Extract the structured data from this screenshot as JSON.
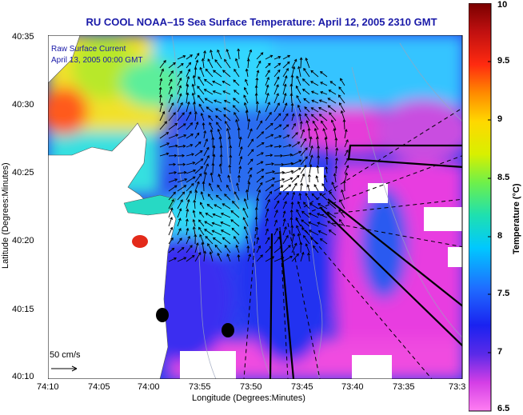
{
  "title": "RU COOL  NOAA–15  Sea Surface Temperature:  April 12, 2005 2310 GMT",
  "legend": {
    "line1": "Raw Surface Current",
    "line2": "April 13, 2005 00:00 GMT"
  },
  "scale_label": "50 cm/s",
  "axes": {
    "xlabel": "Longitude (Degrees:Minutes)",
    "ylabel": "Latitude (Degrees:Minutes)",
    "xticks": [
      "74:10",
      "74:05",
      "74:00",
      "73:55",
      "73:50",
      "73:45",
      "73:40",
      "73:35",
      "73:3"
    ],
    "yticks": [
      "40:35",
      "40:30",
      "40:25",
      "40:20",
      "40:15",
      "40:10"
    ]
  },
  "colorbar": {
    "label": "Temperature (°C)",
    "ticks": [
      "10",
      "9.5",
      "9",
      "8.5",
      "8",
      "7.5",
      "7",
      "6.5"
    ],
    "range": [
      6.5,
      10
    ]
  },
  "colors": {
    "title": "#1a1aa8",
    "land": "#ffffff",
    "warm": "#cc1f1f",
    "cold": "#ff00ff",
    "mid": "#00c8ff"
  }
}
